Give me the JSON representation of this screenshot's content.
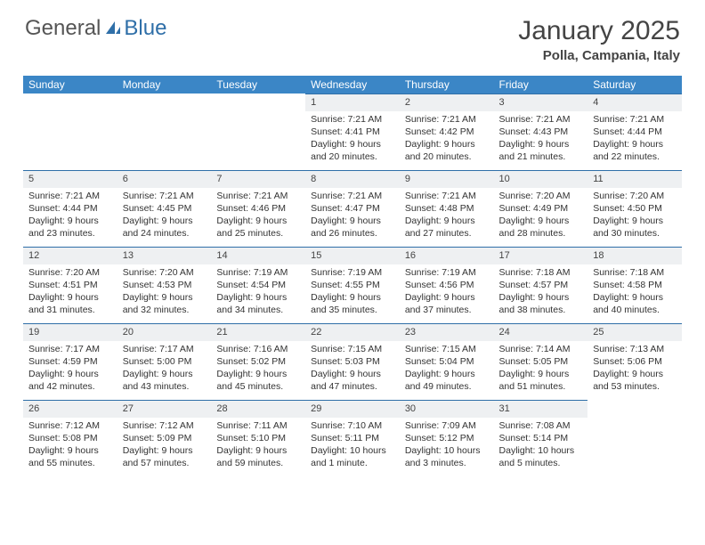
{
  "logo": {
    "text1": "General",
    "text2": "Blue"
  },
  "title": "January 2025",
  "location": "Polla, Campania, Italy",
  "header_bg": "#3b86c6",
  "daynum_bg": "#eef0f2",
  "border_color": "#2f6fa8",
  "columns": [
    "Sunday",
    "Monday",
    "Tuesday",
    "Wednesday",
    "Thursday",
    "Friday",
    "Saturday"
  ],
  "weeks": [
    [
      null,
      null,
      null,
      {
        "n": "1",
        "sr": "7:21 AM",
        "ss": "4:41 PM",
        "dl": "9 hours and 20 minutes."
      },
      {
        "n": "2",
        "sr": "7:21 AM",
        "ss": "4:42 PM",
        "dl": "9 hours and 20 minutes."
      },
      {
        "n": "3",
        "sr": "7:21 AM",
        "ss": "4:43 PM",
        "dl": "9 hours and 21 minutes."
      },
      {
        "n": "4",
        "sr": "7:21 AM",
        "ss": "4:44 PM",
        "dl": "9 hours and 22 minutes."
      }
    ],
    [
      {
        "n": "5",
        "sr": "7:21 AM",
        "ss": "4:44 PM",
        "dl": "9 hours and 23 minutes."
      },
      {
        "n": "6",
        "sr": "7:21 AM",
        "ss": "4:45 PM",
        "dl": "9 hours and 24 minutes."
      },
      {
        "n": "7",
        "sr": "7:21 AM",
        "ss": "4:46 PM",
        "dl": "9 hours and 25 minutes."
      },
      {
        "n": "8",
        "sr": "7:21 AM",
        "ss": "4:47 PM",
        "dl": "9 hours and 26 minutes."
      },
      {
        "n": "9",
        "sr": "7:21 AM",
        "ss": "4:48 PM",
        "dl": "9 hours and 27 minutes."
      },
      {
        "n": "10",
        "sr": "7:20 AM",
        "ss": "4:49 PM",
        "dl": "9 hours and 28 minutes."
      },
      {
        "n": "11",
        "sr": "7:20 AM",
        "ss": "4:50 PM",
        "dl": "9 hours and 30 minutes."
      }
    ],
    [
      {
        "n": "12",
        "sr": "7:20 AM",
        "ss": "4:51 PM",
        "dl": "9 hours and 31 minutes."
      },
      {
        "n": "13",
        "sr": "7:20 AM",
        "ss": "4:53 PM",
        "dl": "9 hours and 32 minutes."
      },
      {
        "n": "14",
        "sr": "7:19 AM",
        "ss": "4:54 PM",
        "dl": "9 hours and 34 minutes."
      },
      {
        "n": "15",
        "sr": "7:19 AM",
        "ss": "4:55 PM",
        "dl": "9 hours and 35 minutes."
      },
      {
        "n": "16",
        "sr": "7:19 AM",
        "ss": "4:56 PM",
        "dl": "9 hours and 37 minutes."
      },
      {
        "n": "17",
        "sr": "7:18 AM",
        "ss": "4:57 PM",
        "dl": "9 hours and 38 minutes."
      },
      {
        "n": "18",
        "sr": "7:18 AM",
        "ss": "4:58 PM",
        "dl": "9 hours and 40 minutes."
      }
    ],
    [
      {
        "n": "19",
        "sr": "7:17 AM",
        "ss": "4:59 PM",
        "dl": "9 hours and 42 minutes."
      },
      {
        "n": "20",
        "sr": "7:17 AM",
        "ss": "5:00 PM",
        "dl": "9 hours and 43 minutes."
      },
      {
        "n": "21",
        "sr": "7:16 AM",
        "ss": "5:02 PM",
        "dl": "9 hours and 45 minutes."
      },
      {
        "n": "22",
        "sr": "7:15 AM",
        "ss": "5:03 PM",
        "dl": "9 hours and 47 minutes."
      },
      {
        "n": "23",
        "sr": "7:15 AM",
        "ss": "5:04 PM",
        "dl": "9 hours and 49 minutes."
      },
      {
        "n": "24",
        "sr": "7:14 AM",
        "ss": "5:05 PM",
        "dl": "9 hours and 51 minutes."
      },
      {
        "n": "25",
        "sr": "7:13 AM",
        "ss": "5:06 PM",
        "dl": "9 hours and 53 minutes."
      }
    ],
    [
      {
        "n": "26",
        "sr": "7:12 AM",
        "ss": "5:08 PM",
        "dl": "9 hours and 55 minutes."
      },
      {
        "n": "27",
        "sr": "7:12 AM",
        "ss": "5:09 PM",
        "dl": "9 hours and 57 minutes."
      },
      {
        "n": "28",
        "sr": "7:11 AM",
        "ss": "5:10 PM",
        "dl": "9 hours and 59 minutes."
      },
      {
        "n": "29",
        "sr": "7:10 AM",
        "ss": "5:11 PM",
        "dl": "10 hours and 1 minute."
      },
      {
        "n": "30",
        "sr": "7:09 AM",
        "ss": "5:12 PM",
        "dl": "10 hours and 3 minutes."
      },
      {
        "n": "31",
        "sr": "7:08 AM",
        "ss": "5:14 PM",
        "dl": "10 hours and 5 minutes."
      },
      null
    ]
  ],
  "labels": {
    "sunrise": "Sunrise: ",
    "sunset": "Sunset: ",
    "daylight": "Daylight: "
  }
}
